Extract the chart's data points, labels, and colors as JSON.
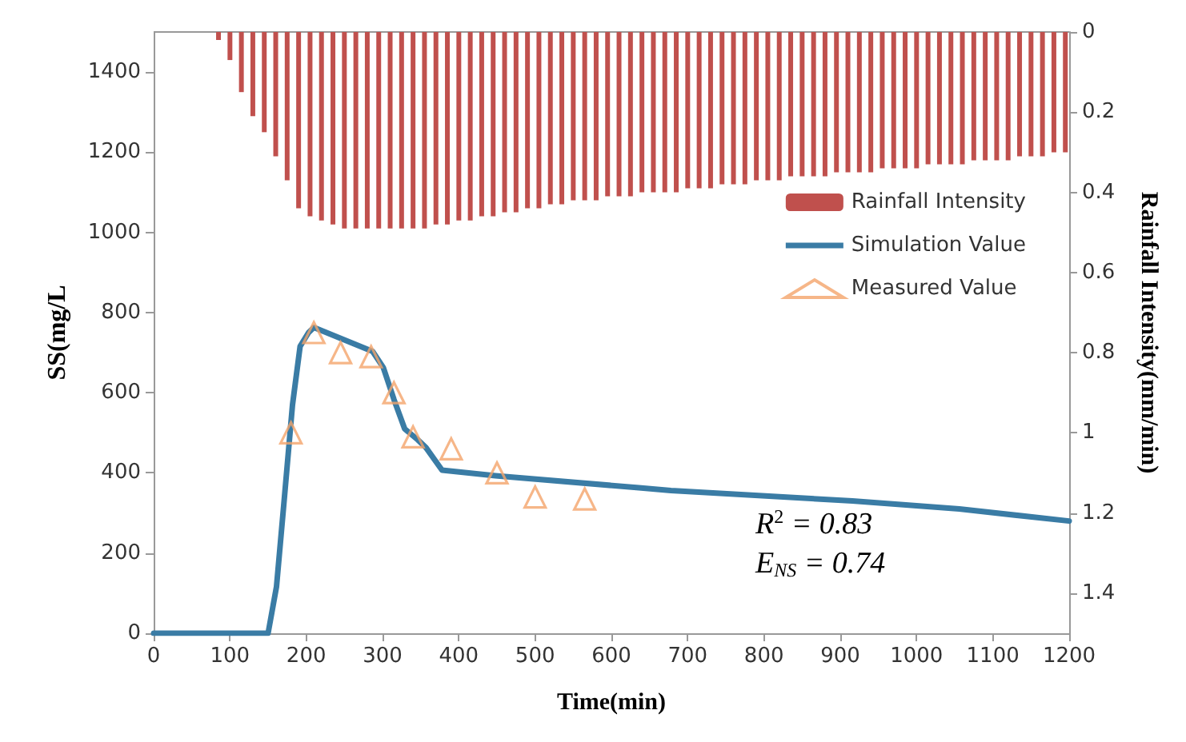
{
  "chart_data": {
    "type": "line",
    "xlabel": "Time(min)",
    "ylabel": "SS(mg/L",
    "y2label": "Rainfall Intensity(mm/min)",
    "xlim": [
      0,
      1200
    ],
    "xticks": [
      0,
      100,
      200,
      300,
      400,
      500,
      600,
      700,
      800,
      900,
      1000,
      1100,
      1200
    ],
    "ylim": [
      0,
      1500
    ],
    "yticks": [
      0,
      200,
      400,
      600,
      800,
      1000,
      1200,
      1400
    ],
    "y2lim": [
      1.5,
      0
    ],
    "y2ticks": [
      0,
      0.2,
      0.4,
      0.6,
      0.8,
      1,
      1.2,
      1.4
    ],
    "legend": "top right",
    "annotations": [
      "R$^{2}$ = 0.83",
      "E$_{NS}$ = 0.74"
    ],
    "series": [
      {
        "name": "Rainfall Intensity",
        "type": "bar",
        "axis": "y2",
        "color": "#c0504d",
        "x": [
          85,
          100,
          115,
          130,
          145,
          160,
          175,
          190,
          205,
          220,
          235,
          250,
          265,
          280,
          295,
          310,
          325,
          340,
          355,
          370,
          385,
          400,
          415,
          430,
          445,
          460,
          475,
          490,
          505,
          520,
          535,
          550,
          565,
          580,
          595,
          610,
          625,
          640,
          655,
          670,
          685,
          700,
          715,
          730,
          745,
          760,
          775,
          790,
          805,
          820,
          835,
          850,
          865,
          880,
          895,
          910,
          925,
          940,
          955,
          970,
          985,
          1000,
          1015,
          1030,
          1045,
          1060,
          1075,
          1090,
          1105,
          1120,
          1135,
          1150,
          1165,
          1180,
          1195
        ],
        "values": [
          0.02,
          0.07,
          0.15,
          0.21,
          0.25,
          0.31,
          0.37,
          0.44,
          0.46,
          0.47,
          0.48,
          0.49,
          0.49,
          0.49,
          0.49,
          0.49,
          0.49,
          0.49,
          0.49,
          0.48,
          0.48,
          0.47,
          0.47,
          0.46,
          0.46,
          0.45,
          0.45,
          0.44,
          0.44,
          0.43,
          0.43,
          0.42,
          0.42,
          0.42,
          0.41,
          0.41,
          0.41,
          0.4,
          0.4,
          0.4,
          0.4,
          0.39,
          0.39,
          0.39,
          0.38,
          0.38,
          0.38,
          0.37,
          0.37,
          0.37,
          0.36,
          0.36,
          0.36,
          0.36,
          0.35,
          0.35,
          0.35,
          0.35,
          0.34,
          0.34,
          0.34,
          0.34,
          0.33,
          0.33,
          0.33,
          0.33,
          0.32,
          0.32,
          0.32,
          0.32,
          0.31,
          0.31,
          0.31,
          0.3,
          0.3
        ]
      },
      {
        "name": "Simulation Value",
        "marker": "none",
        "color": "#3a7ca5",
        "x": [
          0,
          150,
          161,
          171,
          182,
          192,
          203,
          210,
          287,
          301,
          315,
          329,
          346,
          357,
          378,
          448,
          636,
          678,
          916,
          1056,
          1200
        ],
        "values": [
          0,
          0,
          116,
          330,
          570,
          716,
          750,
          763,
          703,
          663,
          583,
          510,
          483,
          463,
          407,
          393,
          363,
          356,
          330,
          310,
          280
        ]
      },
      {
        "name": "Measured Value",
        "type": "scatter",
        "marker": "triangle",
        "color": "#f4a46a",
        "x": [
          180,
          210,
          245,
          285,
          315,
          340,
          390,
          450,
          500,
          565
        ],
        "values": [
          500,
          750,
          700,
          690,
          600,
          490,
          460,
          400,
          340,
          335
        ]
      }
    ]
  }
}
